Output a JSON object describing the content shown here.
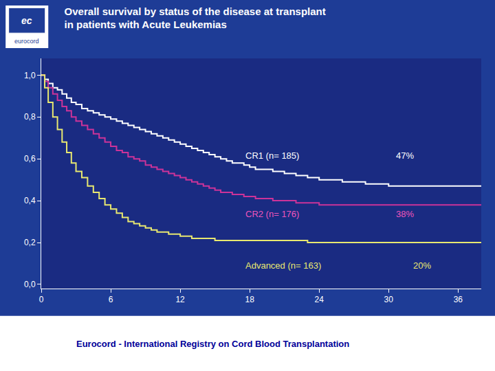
{
  "chart_data": {
    "type": "line",
    "title": "Overall survival by status of the disease at transplant",
    "subtitle": "in patients with Acute Leukemias",
    "footer": {
      "text": "Eurocord - International Registry on Cord Blood Transplantation",
      "color": "#000099"
    },
    "logo": [
      "ec",
      "eurocord"
    ],
    "grid": false,
    "xlim": [
      0,
      38
    ],
    "ylim": [
      -0.02,
      1.08
    ],
    "xticks": [
      0,
      6,
      12,
      18,
      24,
      30,
      36
    ],
    "yticks": [
      {
        "value": 0.0,
        "label": "0,0"
      },
      {
        "value": 0.2,
        "label": "0,2"
      },
      {
        "value": 0.4,
        "label": "0,4"
      },
      {
        "value": 0.6,
        "label": "0,6"
      },
      {
        "value": 0.8,
        "label": "0,8"
      },
      {
        "value": 1.0,
        "label": "1,0"
      }
    ],
    "x": [
      0,
      0.3,
      0.6,
      1,
      1.4,
      1.8,
      2.2,
      2.6,
      3,
      3.5,
      4,
      4.5,
      5,
      5.5,
      6,
      6.5,
      7,
      7.5,
      8,
      8.5,
      9,
      9.5,
      10,
      10.5,
      11,
      11.5,
      12,
      12.5,
      13,
      13.5,
      14,
      14.5,
      15,
      15.5,
      16,
      16.5,
      17,
      17.5,
      18,
      18.5,
      19,
      20,
      21,
      22,
      23,
      24,
      25,
      26,
      27,
      28,
      29,
      30,
      31,
      32,
      33,
      34,
      35,
      36,
      37,
      38
    ],
    "series": [
      {
        "color": "#ffffff",
        "values": [
          1.0,
          0.98,
          0.96,
          0.94,
          0.93,
          0.91,
          0.89,
          0.87,
          0.86,
          0.84,
          0.83,
          0.82,
          0.81,
          0.8,
          0.79,
          0.78,
          0.77,
          0.76,
          0.75,
          0.74,
          0.73,
          0.72,
          0.71,
          0.7,
          0.69,
          0.68,
          0.67,
          0.66,
          0.65,
          0.64,
          0.63,
          0.62,
          0.61,
          0.6,
          0.59,
          0.58,
          0.58,
          0.57,
          0.56,
          0.55,
          0.55,
          0.54,
          0.53,
          0.52,
          0.51,
          0.5,
          0.5,
          0.49,
          0.49,
          0.48,
          0.48,
          0.47,
          0.47,
          0.47,
          0.47,
          0.47,
          0.47,
          0.47,
          0.47,
          0.47
        ]
      },
      {
        "color": "#cc3399",
        "values": [
          1.0,
          0.97,
          0.94,
          0.91,
          0.88,
          0.85,
          0.83,
          0.8,
          0.78,
          0.76,
          0.74,
          0.72,
          0.7,
          0.68,
          0.66,
          0.64,
          0.63,
          0.61,
          0.6,
          0.59,
          0.57,
          0.56,
          0.55,
          0.54,
          0.53,
          0.52,
          0.51,
          0.5,
          0.49,
          0.48,
          0.47,
          0.46,
          0.45,
          0.44,
          0.44,
          0.43,
          0.43,
          0.42,
          0.42,
          0.41,
          0.41,
          0.4,
          0.4,
          0.39,
          0.39,
          0.38,
          0.38,
          0.38,
          0.38,
          0.38,
          0.38,
          0.38,
          0.38,
          0.38,
          0.38,
          0.38,
          0.38,
          0.38,
          0.38,
          0.38
        ]
      },
      {
        "color": "#e8e870",
        "values": [
          1.0,
          0.94,
          0.87,
          0.8,
          0.74,
          0.68,
          0.63,
          0.58,
          0.54,
          0.51,
          0.47,
          0.44,
          0.41,
          0.38,
          0.36,
          0.34,
          0.32,
          0.3,
          0.29,
          0.28,
          0.27,
          0.26,
          0.25,
          0.25,
          0.24,
          0.24,
          0.23,
          0.23,
          0.22,
          0.22,
          0.22,
          0.22,
          0.21,
          0.21,
          0.21,
          0.21,
          0.21,
          0.21,
          0.21,
          0.21,
          0.21,
          0.21,
          0.21,
          0.21,
          0.2,
          0.2,
          0.2,
          0.2,
          0.2,
          0.2,
          0.2,
          0.2,
          0.2,
          0.2,
          0.2,
          0.2,
          0.2,
          0.2,
          0.2,
          0.2
        ]
      }
    ],
    "annotations": [
      {
        "text": "CR1 (n= 185)",
        "x": 17.5,
        "y": 0.615,
        "color": "#ffffff"
      },
      {
        "text": "47%",
        "x": 30.5,
        "y": 0.615,
        "color": "#ffffff"
      },
      {
        "text": "CR2 (n= 176)",
        "x": 17.5,
        "y": 0.335,
        "color": "#ee55bb"
      },
      {
        "text": "38%",
        "x": 30.5,
        "y": 0.335,
        "color": "#ee55bb"
      },
      {
        "text": "Advanced (n= 163)",
        "x": 17.5,
        "y": 0.09,
        "color": "#e8e870"
      },
      {
        "text": "20%",
        "x": 32.0,
        "y": 0.09,
        "color": "#e8e870"
      }
    ]
  }
}
